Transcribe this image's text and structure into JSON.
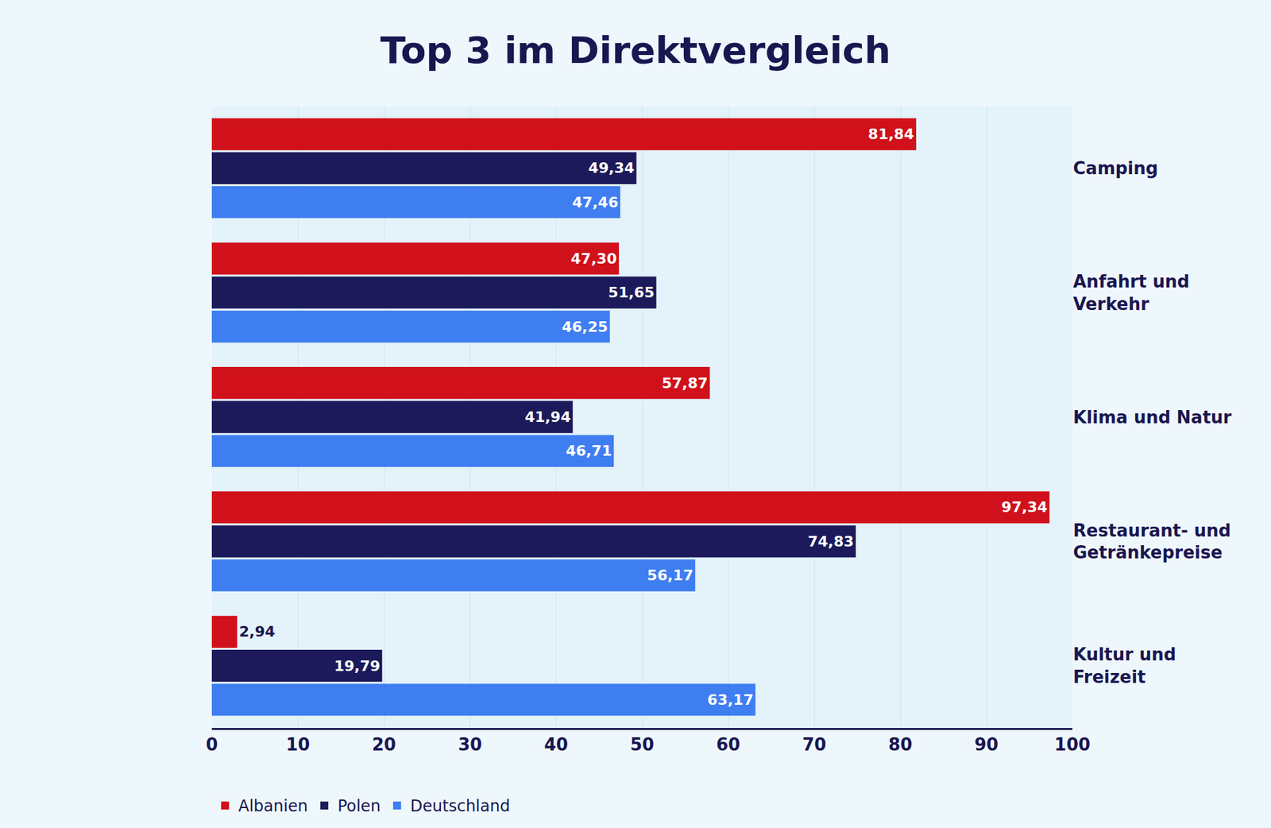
{
  "chart_data": {
    "type": "bar",
    "orientation": "horizontal",
    "title": "Top 3 im Direktvergleich",
    "categories": [
      "Camping",
      "Anfahrt und Verkehr",
      "Klima und Natur",
      "Restaurant- und Getränkepreise",
      "Kultur und Freizeit"
    ],
    "series": [
      {
        "name": "Albanien",
        "color": "#d0111b",
        "values": [
          81.84,
          47.3,
          57.87,
          97.34,
          2.94
        ],
        "value_labels": [
          "81,84",
          "47,30",
          "57,87",
          "97,34",
          "2,94"
        ]
      },
      {
        "name": "Polen",
        "color": "#1c1a5a",
        "values": [
          49.34,
          51.65,
          41.94,
          74.83,
          19.79
        ],
        "value_labels": [
          "49,34",
          "51,65",
          "41,94",
          "74,83",
          "19,79"
        ]
      },
      {
        "name": "Deutschland",
        "color": "#3f7ef0",
        "values": [
          47.46,
          46.25,
          46.71,
          56.17,
          63.17
        ],
        "value_labels": [
          "47,46",
          "46,25",
          "46,71",
          "56,17",
          "63,17"
        ]
      }
    ],
    "xlim": [
      0,
      100
    ],
    "xticks": [
      0,
      10,
      20,
      30,
      40,
      50,
      60,
      70,
      80,
      90,
      100
    ],
    "grid": true,
    "data_labels": true,
    "legend": "bottom left"
  }
}
